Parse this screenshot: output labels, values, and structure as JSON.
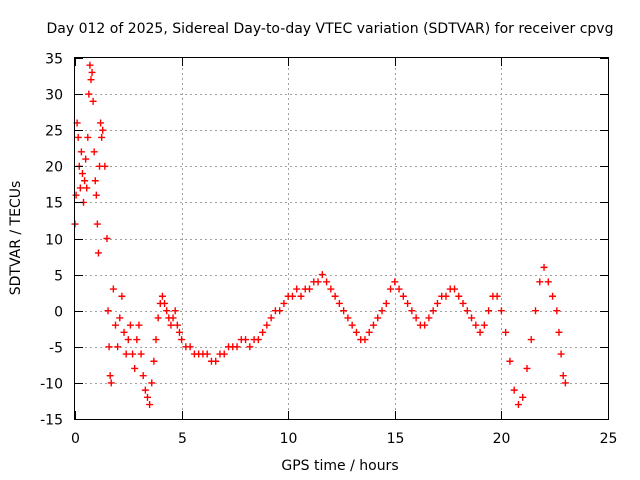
{
  "chart_data": {
    "type": "scatter",
    "title": "Day 012 of 2025, Sidereal Day-to-day VTEC variation (SDTVAR) for receiver cpvg",
    "xlabel": "GPS time / hours",
    "ylabel": "SDTVAR / TECUs",
    "xlim": [
      0,
      25
    ],
    "ylim": [
      -15,
      35
    ],
    "xticks": [
      0,
      5,
      10,
      15,
      20,
      25
    ],
    "yticks": [
      -15,
      -10,
      -5,
      0,
      5,
      10,
      15,
      20,
      25,
      30,
      35
    ],
    "grid": true,
    "marker": "plus",
    "color": "#ff0000",
    "series": [
      {
        "name": "SDTVAR",
        "points": [
          [
            0.0,
            12
          ],
          [
            0.05,
            16
          ],
          [
            0.1,
            26
          ],
          [
            0.15,
            24
          ],
          [
            0.2,
            20
          ],
          [
            0.25,
            17
          ],
          [
            0.3,
            22
          ],
          [
            0.35,
            19
          ],
          [
            0.4,
            15
          ],
          [
            0.45,
            18
          ],
          [
            0.5,
            21
          ],
          [
            0.55,
            17
          ],
          [
            0.6,
            24
          ],
          [
            0.65,
            30
          ],
          [
            0.7,
            34
          ],
          [
            0.75,
            32
          ],
          [
            0.8,
            33
          ],
          [
            0.85,
            29
          ],
          [
            0.9,
            22
          ],
          [
            0.95,
            18
          ],
          [
            1.0,
            16
          ],
          [
            1.05,
            12
          ],
          [
            1.1,
            8
          ],
          [
            1.15,
            20
          ],
          [
            1.2,
            26
          ],
          [
            1.25,
            24
          ],
          [
            1.3,
            25
          ],
          [
            1.4,
            20
          ],
          [
            1.5,
            10
          ],
          [
            1.55,
            0
          ],
          [
            1.6,
            -5
          ],
          [
            1.65,
            -9
          ],
          [
            1.7,
            -10
          ],
          [
            1.8,
            3
          ],
          [
            1.9,
            -2
          ],
          [
            2.0,
            -5
          ],
          [
            2.1,
            -1
          ],
          [
            2.2,
            2
          ],
          [
            2.3,
            -3
          ],
          [
            2.4,
            -6
          ],
          [
            2.5,
            -4
          ],
          [
            2.6,
            -2
          ],
          [
            2.7,
            -6
          ],
          [
            2.8,
            -8
          ],
          [
            2.9,
            -4
          ],
          [
            3.0,
            -2
          ],
          [
            3.1,
            -6
          ],
          [
            3.2,
            -9
          ],
          [
            3.3,
            -11
          ],
          [
            3.4,
            -12
          ],
          [
            3.5,
            -13
          ],
          [
            3.6,
            -10
          ],
          [
            3.7,
            -7
          ],
          [
            3.8,
            -4
          ],
          [
            3.9,
            -1
          ],
          [
            4.0,
            1
          ],
          [
            4.1,
            2
          ],
          [
            4.2,
            1
          ],
          [
            4.3,
            0
          ],
          [
            4.4,
            -1
          ],
          [
            4.5,
            -2
          ],
          [
            4.6,
            -1
          ],
          [
            4.7,
            0
          ],
          [
            4.8,
            -2
          ],
          [
            4.9,
            -3
          ],
          [
            5.0,
            -4
          ],
          [
            5.2,
            -5
          ],
          [
            5.4,
            -5
          ],
          [
            5.6,
            -6
          ],
          [
            5.8,
            -6
          ],
          [
            6.0,
            -6
          ],
          [
            6.2,
            -6
          ],
          [
            6.4,
            -7
          ],
          [
            6.6,
            -7
          ],
          [
            6.8,
            -6
          ],
          [
            7.0,
            -6
          ],
          [
            7.2,
            -5
          ],
          [
            7.4,
            -5
          ],
          [
            7.6,
            -5
          ],
          [
            7.8,
            -4
          ],
          [
            8.0,
            -4
          ],
          [
            8.2,
            -5
          ],
          [
            8.4,
            -4
          ],
          [
            8.6,
            -4
          ],
          [
            8.8,
            -3
          ],
          [
            9.0,
            -2
          ],
          [
            9.2,
            -1
          ],
          [
            9.4,
            0
          ],
          [
            9.6,
            0
          ],
          [
            9.8,
            1
          ],
          [
            10.0,
            2
          ],
          [
            10.2,
            2
          ],
          [
            10.4,
            3
          ],
          [
            10.6,
            2
          ],
          [
            10.8,
            3
          ],
          [
            11.0,
            3
          ],
          [
            11.2,
            4
          ],
          [
            11.4,
            4
          ],
          [
            11.6,
            5
          ],
          [
            11.8,
            4
          ],
          [
            12.0,
            3
          ],
          [
            12.2,
            2
          ],
          [
            12.4,
            1
          ],
          [
            12.6,
            0
          ],
          [
            12.8,
            -1
          ],
          [
            13.0,
            -2
          ],
          [
            13.2,
            -3
          ],
          [
            13.4,
            -4
          ],
          [
            13.6,
            -4
          ],
          [
            13.8,
            -3
          ],
          [
            14.0,
            -2
          ],
          [
            14.2,
            -1
          ],
          [
            14.4,
            0
          ],
          [
            14.6,
            1
          ],
          [
            14.8,
            3
          ],
          [
            15.0,
            4
          ],
          [
            15.2,
            3
          ],
          [
            15.4,
            2
          ],
          [
            15.6,
            1
          ],
          [
            15.8,
            0
          ],
          [
            16.0,
            -1
          ],
          [
            16.2,
            -2
          ],
          [
            16.4,
            -2
          ],
          [
            16.6,
            -1
          ],
          [
            16.8,
            0
          ],
          [
            17.0,
            1
          ],
          [
            17.2,
            2
          ],
          [
            17.4,
            2
          ],
          [
            17.6,
            3
          ],
          [
            17.8,
            3
          ],
          [
            18.0,
            2
          ],
          [
            18.2,
            1
          ],
          [
            18.4,
            0
          ],
          [
            18.6,
            -1
          ],
          [
            18.8,
            -2
          ],
          [
            19.0,
            -3
          ],
          [
            19.2,
            -2
          ],
          [
            19.4,
            0
          ],
          [
            19.6,
            2
          ],
          [
            19.8,
            2
          ],
          [
            20.0,
            0
          ],
          [
            20.2,
            -3
          ],
          [
            20.4,
            -7
          ],
          [
            20.6,
            -11
          ],
          [
            20.8,
            -13
          ],
          [
            21.0,
            -12
          ],
          [
            21.2,
            -8
          ],
          [
            21.4,
            -4
          ],
          [
            21.6,
            0
          ],
          [
            21.8,
            4
          ],
          [
            22.0,
            6
          ],
          [
            22.2,
            4
          ],
          [
            22.4,
            2
          ],
          [
            22.6,
            0
          ],
          [
            22.7,
            -3
          ],
          [
            22.8,
            -6
          ],
          [
            22.9,
            -9
          ],
          [
            23.0,
            -10
          ]
        ]
      }
    ]
  }
}
